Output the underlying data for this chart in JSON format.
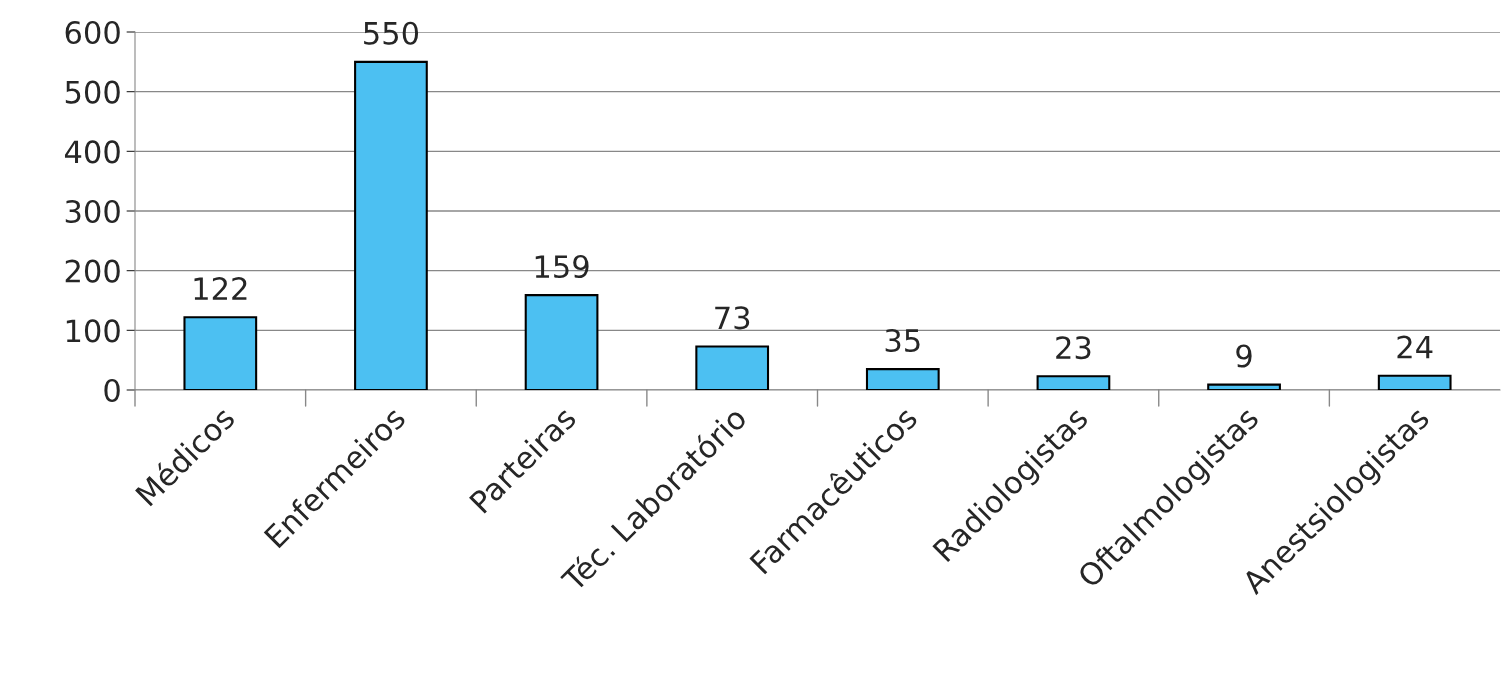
{
  "chart_data": {
    "type": "bar",
    "categories": [
      "Médicos",
      "Enfermeiros",
      "Parteiras",
      "Téc. Laboratório",
      "Farmacêuticos",
      "Radiologistas",
      "Oftalmologistas",
      "Anestsiologistas"
    ],
    "values": [
      122,
      550,
      159,
      73,
      35,
      23,
      9,
      24
    ],
    "color": "#4cc0f2",
    "ylim": [
      0,
      600
    ],
    "yticks": [
      0,
      100,
      200,
      300,
      400,
      500,
      600
    ],
    "grid": "y",
    "data_labels": true
  }
}
